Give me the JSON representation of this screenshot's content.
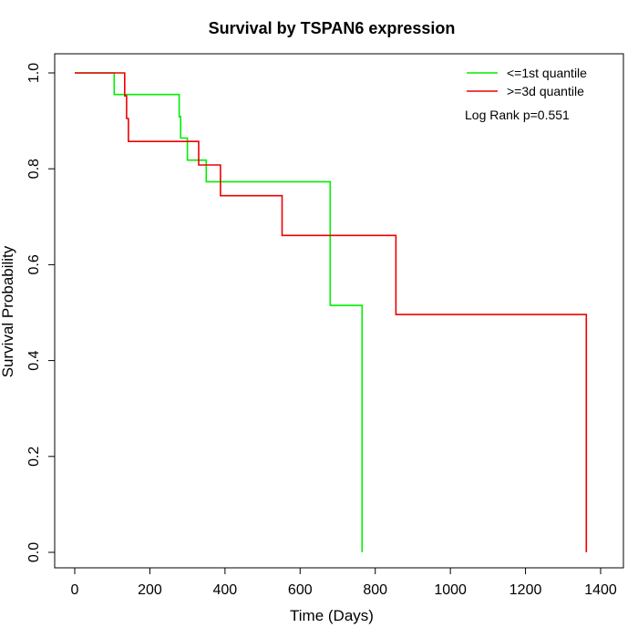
{
  "chart_data": {
    "type": "line",
    "title": "Survival by TSPAN6 expression",
    "xlabel": "Time (Days)",
    "ylabel": "Survival Probability",
    "xlim": [
      0,
      1400
    ],
    "ylim": [
      0,
      1
    ],
    "x_ticks": [
      "0",
      "200",
      "400",
      "600",
      "800",
      "1000",
      "1200",
      "1400"
    ],
    "y_ticks": [
      "0.0",
      "0.2",
      "0.4",
      "0.6",
      "0.8",
      "1.0"
    ],
    "x_tick_values": [
      0,
      200,
      400,
      600,
      800,
      1000,
      1200,
      1400
    ],
    "y_tick_values": [
      0,
      0.2,
      0.4,
      0.6,
      0.8,
      1.0
    ],
    "annotation": "Log Rank p=0.551",
    "legend_position": "top-right",
    "series": [
      {
        "name": "<=1st quantile",
        "color": "#00ee00",
        "x": [
          0,
          105,
          105,
          278,
          278,
          282,
          282,
          300,
          300,
          350,
          350,
          680,
          680,
          765,
          765
        ],
        "y": [
          1.0,
          1.0,
          0.955,
          0.955,
          0.909,
          0.909,
          0.864,
          0.864,
          0.818,
          0.818,
          0.773,
          0.773,
          0.515,
          0.515,
          0.0
        ]
      },
      {
        "name": ">=3d quantile",
        "color": "#ee0000",
        "x": [
          0,
          133,
          133,
          138,
          138,
          143,
          143,
          330,
          330,
          388,
          388,
          552,
          552,
          855,
          855,
          1362,
          1362
        ],
        "y": [
          1.0,
          1.0,
          0.952,
          0.952,
          0.905,
          0.905,
          0.857,
          0.857,
          0.808,
          0.808,
          0.744,
          0.744,
          0.661,
          0.661,
          0.496,
          0.496,
          0.0
        ]
      }
    ]
  }
}
